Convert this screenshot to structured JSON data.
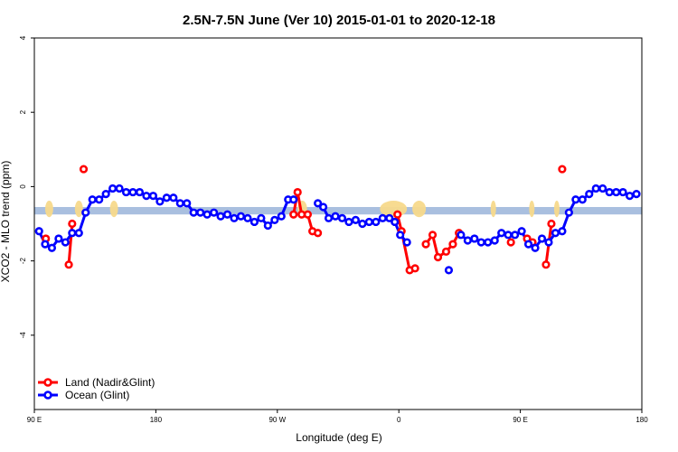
{
  "chart_data": {
    "type": "line",
    "title": "2.5N-7.5N June (Ver 10)   2015-01-01 to 2020-12-18",
    "xlabel": "Longitude (deg E)",
    "ylabel": "XCO2 - MLO trend (ppm)",
    "xlim": [
      90,
      540
    ],
    "ylim": [
      -6,
      4
    ],
    "x_ticks": [
      {
        "value": 90,
        "label": "90 E"
      },
      {
        "value": 180,
        "label": "180"
      },
      {
        "value": 270,
        "label": "90 W"
      },
      {
        "value": 360,
        "label": "0"
      },
      {
        "value": 450,
        "label": "90 E"
      },
      {
        "value": 540,
        "label": "180"
      }
    ],
    "y_ticks": [
      {
        "value": 4,
        "label": "4"
      },
      {
        "value": 2,
        "label": "2"
      },
      {
        "value": 0,
        "label": "0"
      },
      {
        "value": -2,
        "label": "-2"
      },
      {
        "value": -4,
        "label": "-4"
      }
    ],
    "background_band": {
      "y_from": -0.55,
      "y_to": -0.75,
      "color": "#a9bfdf",
      "land_color": "#f7d98b"
    },
    "land_patches": [
      [
        98,
        104
      ],
      [
        120,
        126
      ],
      [
        146,
        152
      ],
      [
        285,
        292
      ],
      [
        346,
        366
      ],
      [
        370,
        380
      ],
      [
        428,
        432
      ],
      [
        457,
        460
      ],
      [
        475,
        479
      ]
    ],
    "series": [
      {
        "name": "Land (Nadir&Glint)",
        "color": "#ff0000",
        "points": [
          [
            98.5,
            -1.4
          ],
          [
            115.5,
            -2.1
          ],
          [
            118,
            -1.0
          ],
          [
            126.5,
            0.47
          ],
          [
            282,
            -0.75
          ],
          [
            285,
            -0.15
          ],
          [
            288,
            -0.75
          ],
          [
            292.5,
            -0.75
          ],
          [
            296,
            -1.2
          ],
          [
            300,
            -1.25
          ],
          [
            359,
            -0.75
          ],
          [
            362,
            -1.2
          ],
          [
            368,
            -2.25
          ],
          [
            372,
            -2.2
          ],
          [
            380,
            -1.55
          ],
          [
            385,
            -1.3
          ],
          [
            389,
            -1.9
          ],
          [
            395,
            -1.75
          ],
          [
            400,
            -1.55
          ],
          [
            404.5,
            -1.25
          ],
          [
            443,
            -1.5
          ],
          [
            455,
            -1.4
          ],
          [
            459,
            -1.5
          ],
          [
            469,
            -2.1
          ],
          [
            473,
            -1.0
          ],
          [
            481,
            0.47
          ]
        ]
      },
      {
        "name": "Ocean (Glint)",
        "color": "#0000ff",
        "points": [
          [
            93.5,
            -1.2
          ],
          [
            98,
            -1.55
          ],
          [
            103,
            -1.65
          ],
          [
            108,
            -1.4
          ],
          [
            113,
            -1.5
          ],
          [
            118,
            -1.25
          ],
          [
            123,
            -1.25
          ],
          [
            128,
            -0.7
          ],
          [
            133,
            -0.35
          ],
          [
            138,
            -0.35
          ],
          [
            143,
            -0.2
          ],
          [
            148,
            -0.05
          ],
          [
            153,
            -0.05
          ],
          [
            158,
            -0.15
          ],
          [
            163,
            -0.15
          ],
          [
            168,
            -0.15
          ],
          [
            173,
            -0.25
          ],
          [
            178,
            -0.25
          ],
          [
            183,
            -0.4
          ],
          [
            188,
            -0.3
          ],
          [
            193,
            -0.3
          ],
          [
            198,
            -0.45
          ],
          [
            203,
            -0.45
          ],
          [
            208,
            -0.7
          ],
          [
            213,
            -0.7
          ],
          [
            218,
            -0.75
          ],
          [
            223,
            -0.7
          ],
          [
            228,
            -0.8
          ],
          [
            233,
            -0.75
          ],
          [
            238,
            -0.85
          ],
          [
            243,
            -0.8
          ],
          [
            248,
            -0.85
          ],
          [
            253,
            -0.95
          ],
          [
            258,
            -0.85
          ],
          [
            263,
            -1.05
          ],
          [
            268,
            -0.9
          ],
          [
            273,
            -0.8
          ],
          [
            278,
            -0.35
          ],
          [
            282,
            -0.35
          ],
          [
            300,
            -0.45
          ],
          [
            304,
            -0.55
          ],
          [
            308,
            -0.85
          ],
          [
            313,
            -0.8
          ],
          [
            318,
            -0.85
          ],
          [
            323,
            -0.95
          ],
          [
            328,
            -0.9
          ],
          [
            333,
            -1.0
          ],
          [
            338,
            -0.95
          ],
          [
            343,
            -0.95
          ],
          [
            348,
            -0.85
          ],
          [
            353,
            -0.85
          ],
          [
            357,
            -0.95
          ],
          [
            361,
            -1.3
          ],
          [
            366,
            -1.5
          ],
          [
            397,
            -2.25
          ],
          [
            406,
            -1.3
          ],
          [
            411,
            -1.45
          ],
          [
            416,
            -1.4
          ],
          [
            421,
            -1.5
          ],
          [
            426,
            -1.5
          ],
          [
            431,
            -1.45
          ],
          [
            436,
            -1.25
          ],
          [
            441,
            -1.3
          ],
          [
            446,
            -1.3
          ],
          [
            451,
            -1.2
          ],
          [
            456,
            -1.55
          ],
          [
            461,
            -1.65
          ],
          [
            466,
            -1.4
          ],
          [
            471,
            -1.5
          ],
          [
            476,
            -1.25
          ],
          [
            481,
            -1.2
          ],
          [
            486,
            -0.7
          ],
          [
            491,
            -0.35
          ],
          [
            496,
            -0.35
          ],
          [
            501,
            -0.2
          ],
          [
            506,
            -0.05
          ],
          [
            511,
            -0.05
          ],
          [
            516,
            -0.15
          ],
          [
            521,
            -0.15
          ],
          [
            526,
            -0.15
          ],
          [
            531,
            -0.25
          ],
          [
            536,
            -0.2
          ]
        ]
      }
    ],
    "legend_position": "bottom-left",
    "grid": false
  }
}
